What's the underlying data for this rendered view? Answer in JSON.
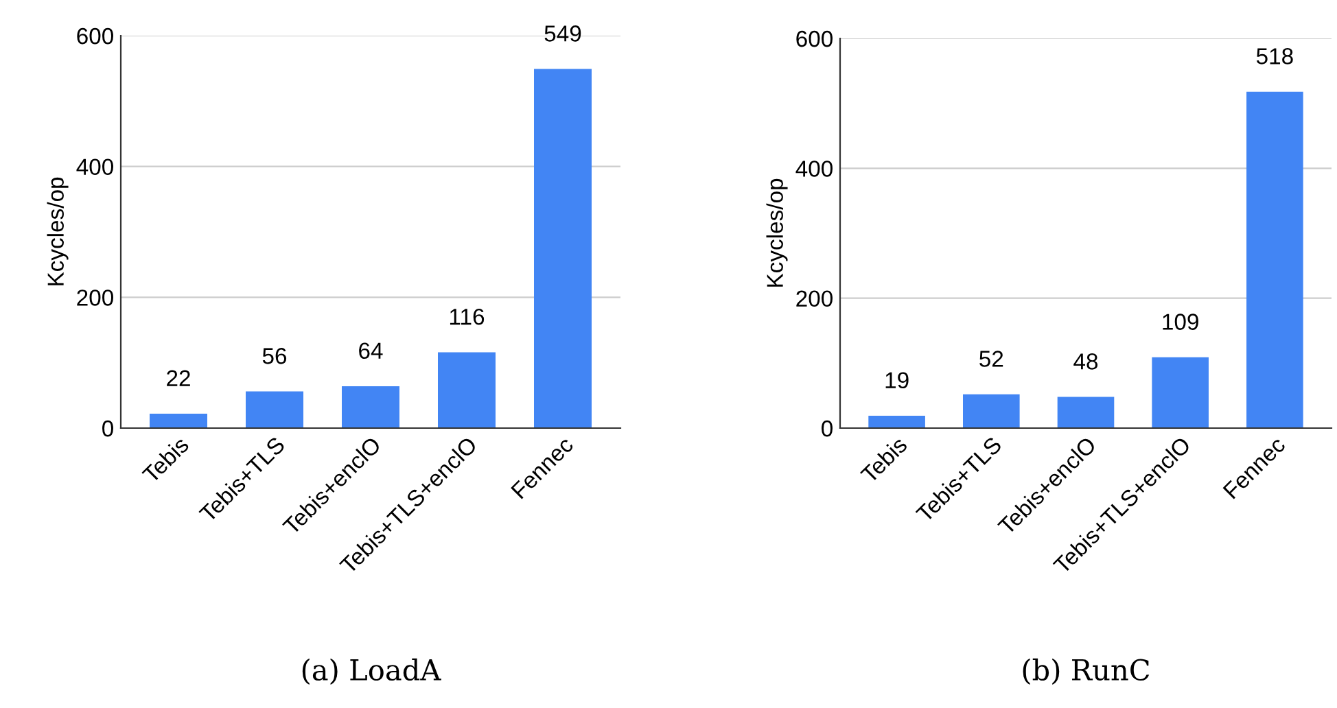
{
  "chart_data": [
    {
      "type": "bar",
      "title": "(a) LoadA",
      "ylabel": "Kcycles/op",
      "categories": [
        "Tebis",
        "Tebis+TLS",
        "Tebis+enclO",
        "Tebis+TLS+enclO",
        "Fennec"
      ],
      "values": [
        22,
        56,
        64,
        116,
        549
      ],
      "color": "#4285f4",
      "ylim": [
        0,
        600
      ],
      "yticks": [
        0,
        200,
        400,
        600
      ],
      "grid": "y",
      "data_labels": true
    },
    {
      "type": "bar",
      "title": "(b) RunC",
      "ylabel": "Kcycles/op",
      "categories": [
        "Tebis",
        "Tebis+TLS",
        "Tebis+enclO",
        "Tebis+TLS+enclO",
        "Fennec"
      ],
      "values": [
        19,
        52,
        48,
        109,
        518
      ],
      "color": "#4285f4",
      "ylim": [
        0,
        600
      ],
      "yticks": [
        0,
        200,
        400,
        600
      ],
      "grid": "y",
      "data_labels": true
    }
  ]
}
